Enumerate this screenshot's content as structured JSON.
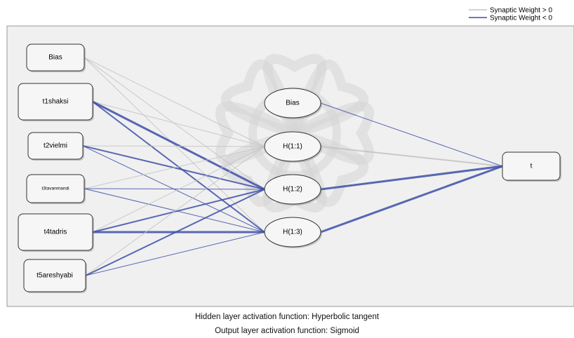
{
  "legend": [
    {
      "label": "Synaptic Weight > 0",
      "color": "#c4c4c4"
    },
    {
      "label": "Synaptic Weight < 0",
      "color": "#3d4fa8"
    }
  ],
  "colors": {
    "panel_bg": "#f0f0f0",
    "positive": "#c4c4c4",
    "negative": "#3d4fa8",
    "watermark": "#d6d6d6"
  },
  "layers": {
    "input": [
      {
        "id": "bias_in",
        "label": "Bias"
      },
      {
        "id": "t1",
        "label": "t1shaksi"
      },
      {
        "id": "t2",
        "label": "t2vielmi"
      },
      {
        "id": "t3",
        "label": "t3tavanmandi"
      },
      {
        "id": "t4",
        "label": "t4tadris"
      },
      {
        "id": "t5",
        "label": "t5areshyabi"
      }
    ],
    "hidden": [
      {
        "id": "bias_h",
        "label": "Bias"
      },
      {
        "id": "h1",
        "label": "H(1:1)"
      },
      {
        "id": "h2",
        "label": "H(1:2)"
      },
      {
        "id": "h3",
        "label": "H(1:3)"
      }
    ],
    "output": [
      {
        "id": "out",
        "label": "t"
      }
    ]
  },
  "connections": [
    {
      "from": "bias_in",
      "to": "h1",
      "sign": "positive",
      "strength": 1
    },
    {
      "from": "bias_in",
      "to": "h2",
      "sign": "positive",
      "strength": 1
    },
    {
      "from": "bias_in",
      "to": "h3",
      "sign": "positive",
      "strength": 1
    },
    {
      "from": "t1",
      "to": "h1",
      "sign": "positive",
      "strength": 1
    },
    {
      "from": "t1",
      "to": "h2",
      "sign": "negative",
      "strength": 3
    },
    {
      "from": "t1",
      "to": "h3",
      "sign": "negative",
      "strength": 2
    },
    {
      "from": "t2",
      "to": "h1",
      "sign": "positive",
      "strength": 1
    },
    {
      "from": "t2",
      "to": "h2",
      "sign": "negative",
      "strength": 2
    },
    {
      "from": "t2",
      "to": "h3",
      "sign": "negative",
      "strength": 1
    },
    {
      "from": "t3",
      "to": "h1",
      "sign": "positive",
      "strength": 1
    },
    {
      "from": "t3",
      "to": "h2",
      "sign": "negative",
      "strength": 1
    },
    {
      "from": "t3",
      "to": "h3",
      "sign": "negative",
      "strength": 1
    },
    {
      "from": "t4",
      "to": "h1",
      "sign": "positive",
      "strength": 1
    },
    {
      "from": "t4",
      "to": "h2",
      "sign": "negative",
      "strength": 2
    },
    {
      "from": "t4",
      "to": "h3",
      "sign": "negative",
      "strength": 3
    },
    {
      "from": "t5",
      "to": "h1",
      "sign": "positive",
      "strength": 1
    },
    {
      "from": "t5",
      "to": "h2",
      "sign": "negative",
      "strength": 2
    },
    {
      "from": "t5",
      "to": "h3",
      "sign": "negative",
      "strength": 1
    },
    {
      "from": "bias_h",
      "to": "out",
      "sign": "negative",
      "strength": 1
    },
    {
      "from": "h1",
      "to": "out",
      "sign": "positive",
      "strength": 2
    },
    {
      "from": "h2",
      "to": "out",
      "sign": "negative",
      "strength": 3
    },
    {
      "from": "h3",
      "to": "out",
      "sign": "negative",
      "strength": 3
    }
  ],
  "captions": {
    "hidden_activation": "Hidden layer activation function: Hyperbolic tangent",
    "output_activation": "Output layer activation function: Sigmoid"
  }
}
